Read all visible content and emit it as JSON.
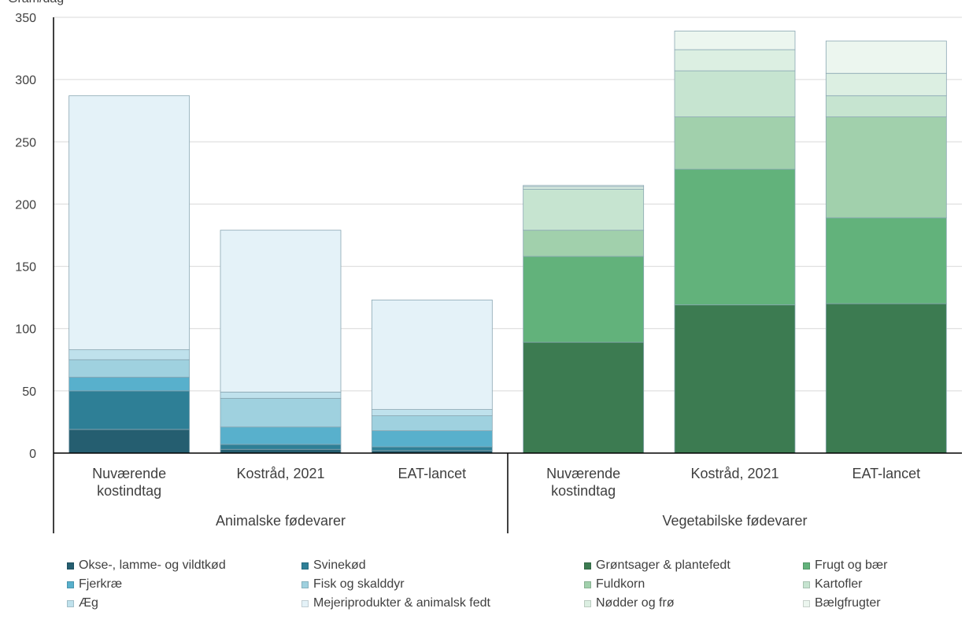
{
  "chart_data": {
    "type": "bar",
    "stacked": true,
    "ylim": [
      0,
      350
    ],
    "y_ticks": [
      "0",
      "50",
      "100",
      "150",
      "200",
      "250",
      "300",
      "350"
    ],
    "y_unit": "Gram/dag",
    "grid": true,
    "groups": [
      {
        "label": "Animalske fødevarer",
        "categories": [
          "Nuværende kostindtag",
          "Kostråd, 2021",
          "EAT-lancet"
        ],
        "series": [
          {
            "name": "Okse-, lamme- og vildtkød",
            "color": "#255e70",
            "values": [
              19,
              3,
              2
            ]
          },
          {
            "name": "Svinekød",
            "color": "#2e7f96",
            "values": [
              31,
              4,
              3
            ]
          },
          {
            "name": "Fjerkræ",
            "color": "#58b0cc",
            "values": [
              11,
              14,
              13
            ]
          },
          {
            "name": "Fisk og skalddyr",
            "color": "#9fd1df",
            "values": [
              14,
              23,
              12
            ]
          },
          {
            "name": "Æg",
            "color": "#bfe1ec",
            "values": [
              8,
              5,
              5
            ]
          },
          {
            "name": "Mejeriprodukter & animalsk fedt",
            "color": "#e4f2f8",
            "values": [
              204,
              130,
              88
            ]
          }
        ]
      },
      {
        "label": "Vegetabilske fødevarer",
        "categories": [
          "Nuværende kostindtag",
          "Kostråd, 2021",
          "EAT-lancet"
        ],
        "series": [
          {
            "name": "Grøntsager & plantefedt",
            "color": "#3c7b51",
            "values": [
              89,
              119,
              120
            ]
          },
          {
            "name": "Frugt og bær",
            "color": "#62b27b",
            "values": [
              69,
              109,
              69
            ]
          },
          {
            "name": "Fuldkorn",
            "color": "#a1d0ac",
            "values": [
              21,
              42,
              81
            ]
          },
          {
            "name": "Kartofler",
            "color": "#c6e4d0",
            "values": [
              33,
              37,
              17
            ]
          },
          {
            "name": "Nødder og frø",
            "color": "#dcefe2",
            "values": [
              2,
              17,
              18
            ]
          },
          {
            "name": "Bælgfrugter",
            "color": "#ecf6ef",
            "values": [
              1,
              15,
              26
            ]
          }
        ]
      }
    ],
    "legend": {
      "position": "bottom",
      "items": [
        "Okse-, lamme- og vildtkød",
        "Svinekød",
        "Grøntsager & plantefedt",
        "Frugt og bær",
        "Fjerkræ",
        "Fisk og skalddyr",
        "Fuldkorn",
        "Kartofler",
        "Æg",
        "Mejeriprodukter & animalsk fedt",
        "Nødder og frø",
        "Bælgfrugter"
      ]
    }
  }
}
